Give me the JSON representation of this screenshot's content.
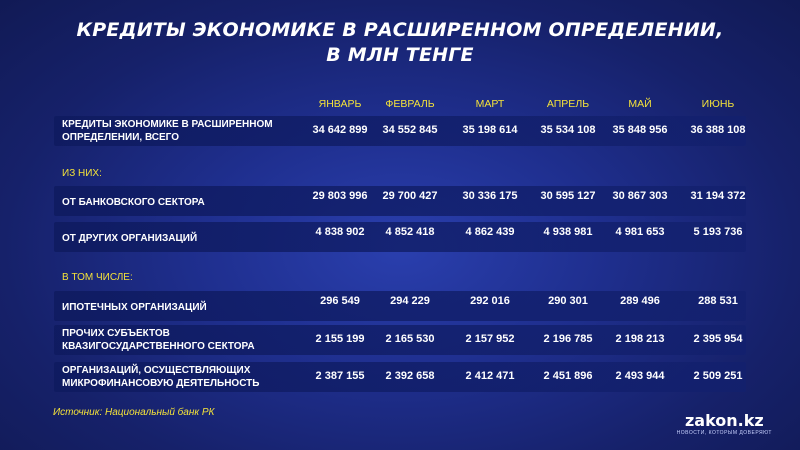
{
  "title_lines": [
    "КРЕДИТЫ ЭКОНОМИКЕ В РАСШИРЕННОМ ОПРЕДЕЛЕНИИ,",
    "В МЛН ТЕНГЕ"
  ],
  "months": [
    "ЯНВАРЬ",
    "ФЕВРАЛЬ",
    "МАРТ",
    "АПРЕЛЬ",
    "МАЙ",
    "ИЮНЬ"
  ],
  "sections": {
    "of_which": "ИЗ НИХ:",
    "including": "В ТОМ ЧИСЛЕ:"
  },
  "source": "Источник: Национальный банк РК",
  "logo": {
    "name": "zakon.kz",
    "tagline": "НОВОСТИ, КОТОРЫМ ДОВЕРЯЮТ"
  },
  "chart_data": {
    "type": "table",
    "title": "КРЕДИТЫ ЭКОНОМИКЕ В РАСШИРЕННОМ ОПРЕДЕЛЕНИИ, В МЛН ТЕНГЕ",
    "columns": [
      "ЯНВАРЬ",
      "ФЕВРАЛЬ",
      "МАРТ",
      "АПРЕЛЬ",
      "МАЙ",
      "ИЮНЬ"
    ],
    "rows": [
      {
        "label": "КРЕДИТЫ ЭКОНОМИКЕ В РАСШИРЕННОМ ОПРЕДЕЛЕНИИ, ВСЕГО",
        "values": [
          "34 642 899",
          "34 552 845",
          "35 198 614",
          "35 534 108",
          "35 848 956",
          "36 388 108"
        ]
      },
      {
        "label": "ОТ БАНКОВСКОГО СЕКТОРА",
        "values": [
          "29 803 996",
          "29 700 427",
          "30 336 175",
          "30 595 127",
          "30 867 303",
          "31 194 372"
        ]
      },
      {
        "label": "ОТ ДРУГИХ ОРГАНИЗАЦИЙ",
        "values": [
          "4 838 902",
          "4 852 418",
          "4 862 439",
          "4 938 981",
          "4 981 653",
          "5 193 736"
        ]
      },
      {
        "label": "ИПОТЕЧНЫХ ОРГАНИЗАЦИЙ",
        "values": [
          "296 549",
          "294 229",
          "292 016",
          "290 301",
          "289 496",
          "288 531"
        ]
      },
      {
        "label": "ПРОЧИХ СУБЪЕКТОВ КВАЗИГОСУДАРСТВЕННОГО СЕКТОРА",
        "values": [
          "2 155 199",
          "2 165 530",
          "2 157 952",
          "2 196 785",
          "2 198 213",
          "2 395 954"
        ]
      },
      {
        "label": "ОРГАНИЗАЦИЙ, ОСУЩЕСТВЛЯЮЩИХ МИКРОФИНАНСОВУЮ ДЕЯТЕЛЬНОСТЬ",
        "values": [
          "2 387 155",
          "2 392 658",
          "2 412 471",
          "2 451 896",
          "2 493 944",
          "2 509 251"
        ]
      }
    ]
  }
}
